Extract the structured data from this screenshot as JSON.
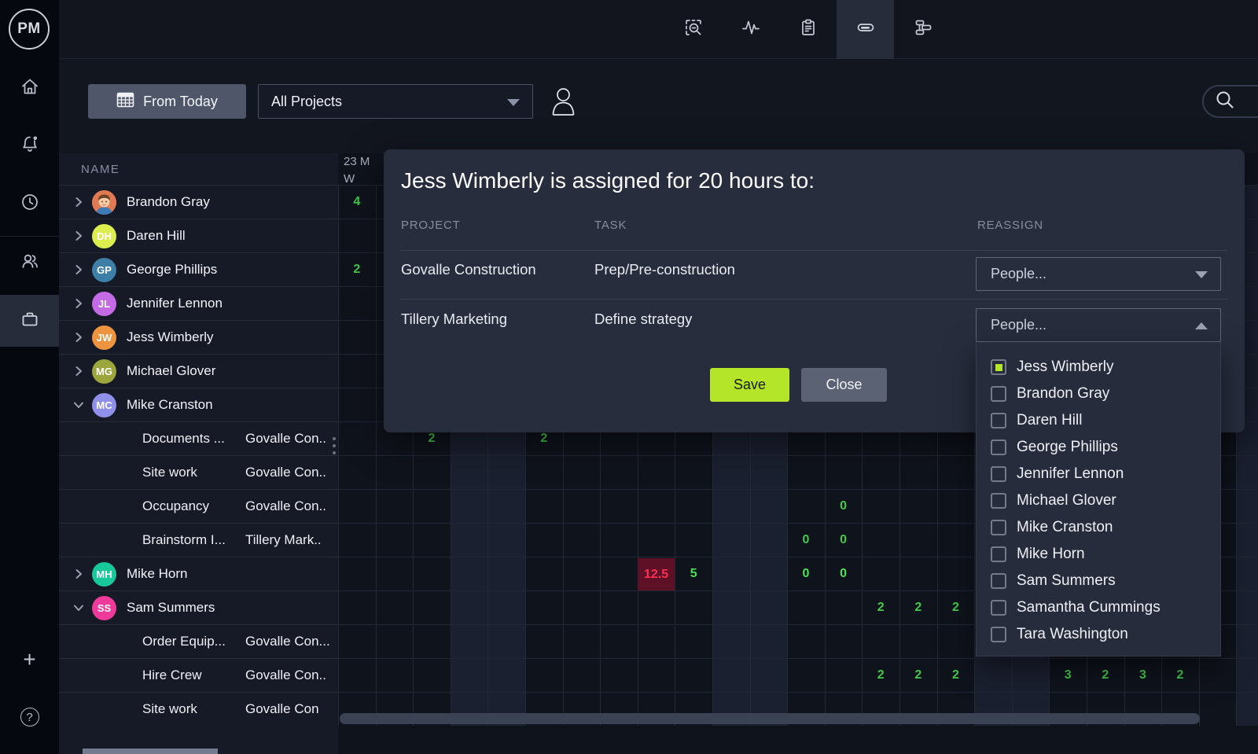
{
  "app": {
    "logo_text": "PM"
  },
  "topbar": {
    "tool_icons": [
      "area-search",
      "activity",
      "clipboard",
      "workload",
      "org-chart"
    ],
    "active_tool": "workload"
  },
  "sidebar": {
    "icons": [
      "home",
      "notifications",
      "history",
      "team",
      "projects",
      "add",
      "help"
    ],
    "active_icon": "projects",
    "help_glyph": "?",
    "add_glyph": "+"
  },
  "filterbar": {
    "from_today_label": "From Today",
    "project_filter_value": "All Projects"
  },
  "names_header": "NAME",
  "grid": {
    "date_header": "23 M",
    "week_header": "W",
    "columns": 25,
    "weekend_columns": [
      3,
      4,
      10,
      11,
      17,
      18,
      24
    ],
    "allocation_color": "#41c94b",
    "overallocation_color": "#fe2e55",
    "overallocation_bg": "#5e1027"
  },
  "rows": [
    {
      "type": "person",
      "name": "Brandon Gray",
      "initials": "BG",
      "avatar": "photo",
      "color": "#e07a52",
      "expanded": false,
      "cells": [
        {
          "col": 0,
          "value": "4"
        }
      ]
    },
    {
      "type": "person",
      "name": "Daren Hill",
      "initials": "DH",
      "avatar": "initials",
      "color": "#dced4f",
      "expanded": false,
      "cells": []
    },
    {
      "type": "person",
      "name": "George Phillips",
      "initials": "GP",
      "avatar": "initials",
      "color": "#3e7fa8",
      "expanded": false,
      "cells": [
        {
          "col": 0,
          "value": "2"
        }
      ]
    },
    {
      "type": "person",
      "name": "Jennifer Lennon",
      "initials": "JL",
      "avatar": "initials",
      "color": "#c36ae4",
      "expanded": false,
      "cells": []
    },
    {
      "type": "person",
      "name": "Jess Wimberly",
      "initials": "JW",
      "avatar": "initials",
      "color": "#ee9440",
      "expanded": false,
      "cells": []
    },
    {
      "type": "person",
      "name": "Michael Glover",
      "initials": "MG",
      "avatar": "initials",
      "color": "#9ba63c",
      "expanded": false,
      "cells": []
    },
    {
      "type": "person",
      "name": "Mike Cranston",
      "initials": "MC",
      "avatar": "initials",
      "color": "#9090ea",
      "expanded": true,
      "cells": []
    },
    {
      "type": "task",
      "task": "Documents ...",
      "project": "Govalle Con..",
      "cells": [
        {
          "col": 2,
          "value": "2"
        },
        {
          "col": 5,
          "value": "2"
        }
      ]
    },
    {
      "type": "task",
      "task": "Site work",
      "project": "Govalle Con..",
      "cells": []
    },
    {
      "type": "task",
      "task": "Occupancy",
      "project": "Govalle Con..",
      "cells": [
        {
          "col": 13,
          "value": "0"
        }
      ]
    },
    {
      "type": "task",
      "task": "Brainstorm I...",
      "project": "Tillery Mark..",
      "cells": [
        {
          "col": 12,
          "value": "0"
        },
        {
          "col": 13,
          "value": "0"
        }
      ]
    },
    {
      "type": "person",
      "name": "Mike Horn",
      "initials": "MH",
      "avatar": "initials",
      "color": "#17c89b",
      "expanded": false,
      "cells": [
        {
          "col": 8,
          "value": "12.5",
          "style": "over"
        },
        {
          "col": 9,
          "value": "5",
          "bold": true
        },
        {
          "col": 12,
          "value": "0",
          "bold": true
        },
        {
          "col": 13,
          "value": "0",
          "bold": true
        }
      ]
    },
    {
      "type": "person",
      "name": "Sam Summers",
      "initials": "SS",
      "avatar": "initials",
      "color": "#ee3b9b",
      "expanded": true,
      "cells": [
        {
          "col": 14,
          "value": "2"
        },
        {
          "col": 15,
          "value": "2"
        },
        {
          "col": 16,
          "value": "2"
        }
      ]
    },
    {
      "type": "task",
      "task": "Order Equip...",
      "project": "Govalle Con...",
      "cells": []
    },
    {
      "type": "task",
      "task": "Hire Crew",
      "project": "Govalle Con..",
      "cells": [
        {
          "col": 14,
          "value": "2"
        },
        {
          "col": 15,
          "value": "2"
        },
        {
          "col": 16,
          "value": "2"
        },
        {
          "col": 19,
          "value": "3"
        },
        {
          "col": 20,
          "value": "2"
        },
        {
          "col": 21,
          "value": "3"
        },
        {
          "col": 22,
          "value": "2"
        }
      ]
    },
    {
      "type": "task",
      "task": "Site work",
      "project": "Govalle Con",
      "cells": []
    }
  ],
  "modal": {
    "title": "Jess Wimberly is assigned for 20 hours to:",
    "columns": [
      "PROJECT",
      "TASK",
      "REASSIGN"
    ],
    "assignments": [
      {
        "project": "Govalle Construction",
        "task": "Prep/Pre-construction",
        "select_value": "People...",
        "state": "collapsed"
      },
      {
        "project": "Tillery Marketing",
        "task": "Define strategy",
        "select_value": "People...",
        "state": "expanded"
      }
    ],
    "save_label": "Save",
    "close_label": "Close",
    "accent_color": "#b5e529",
    "people_options": [
      {
        "label": "Jess Wimberly",
        "checked": true
      },
      {
        "label": "Brandon Gray",
        "checked": false
      },
      {
        "label": "Daren Hill",
        "checked": false
      },
      {
        "label": "George Phillips",
        "checked": false
      },
      {
        "label": "Jennifer Lennon",
        "checked": false
      },
      {
        "label": "Michael Glover",
        "checked": false
      },
      {
        "label": "Mike Cranston",
        "checked": false
      },
      {
        "label": "Mike Horn",
        "checked": false
      },
      {
        "label": "Sam Summers",
        "checked": false
      },
      {
        "label": "Samantha Cummings",
        "checked": false
      },
      {
        "label": "Tara Washington",
        "checked": false
      }
    ]
  }
}
